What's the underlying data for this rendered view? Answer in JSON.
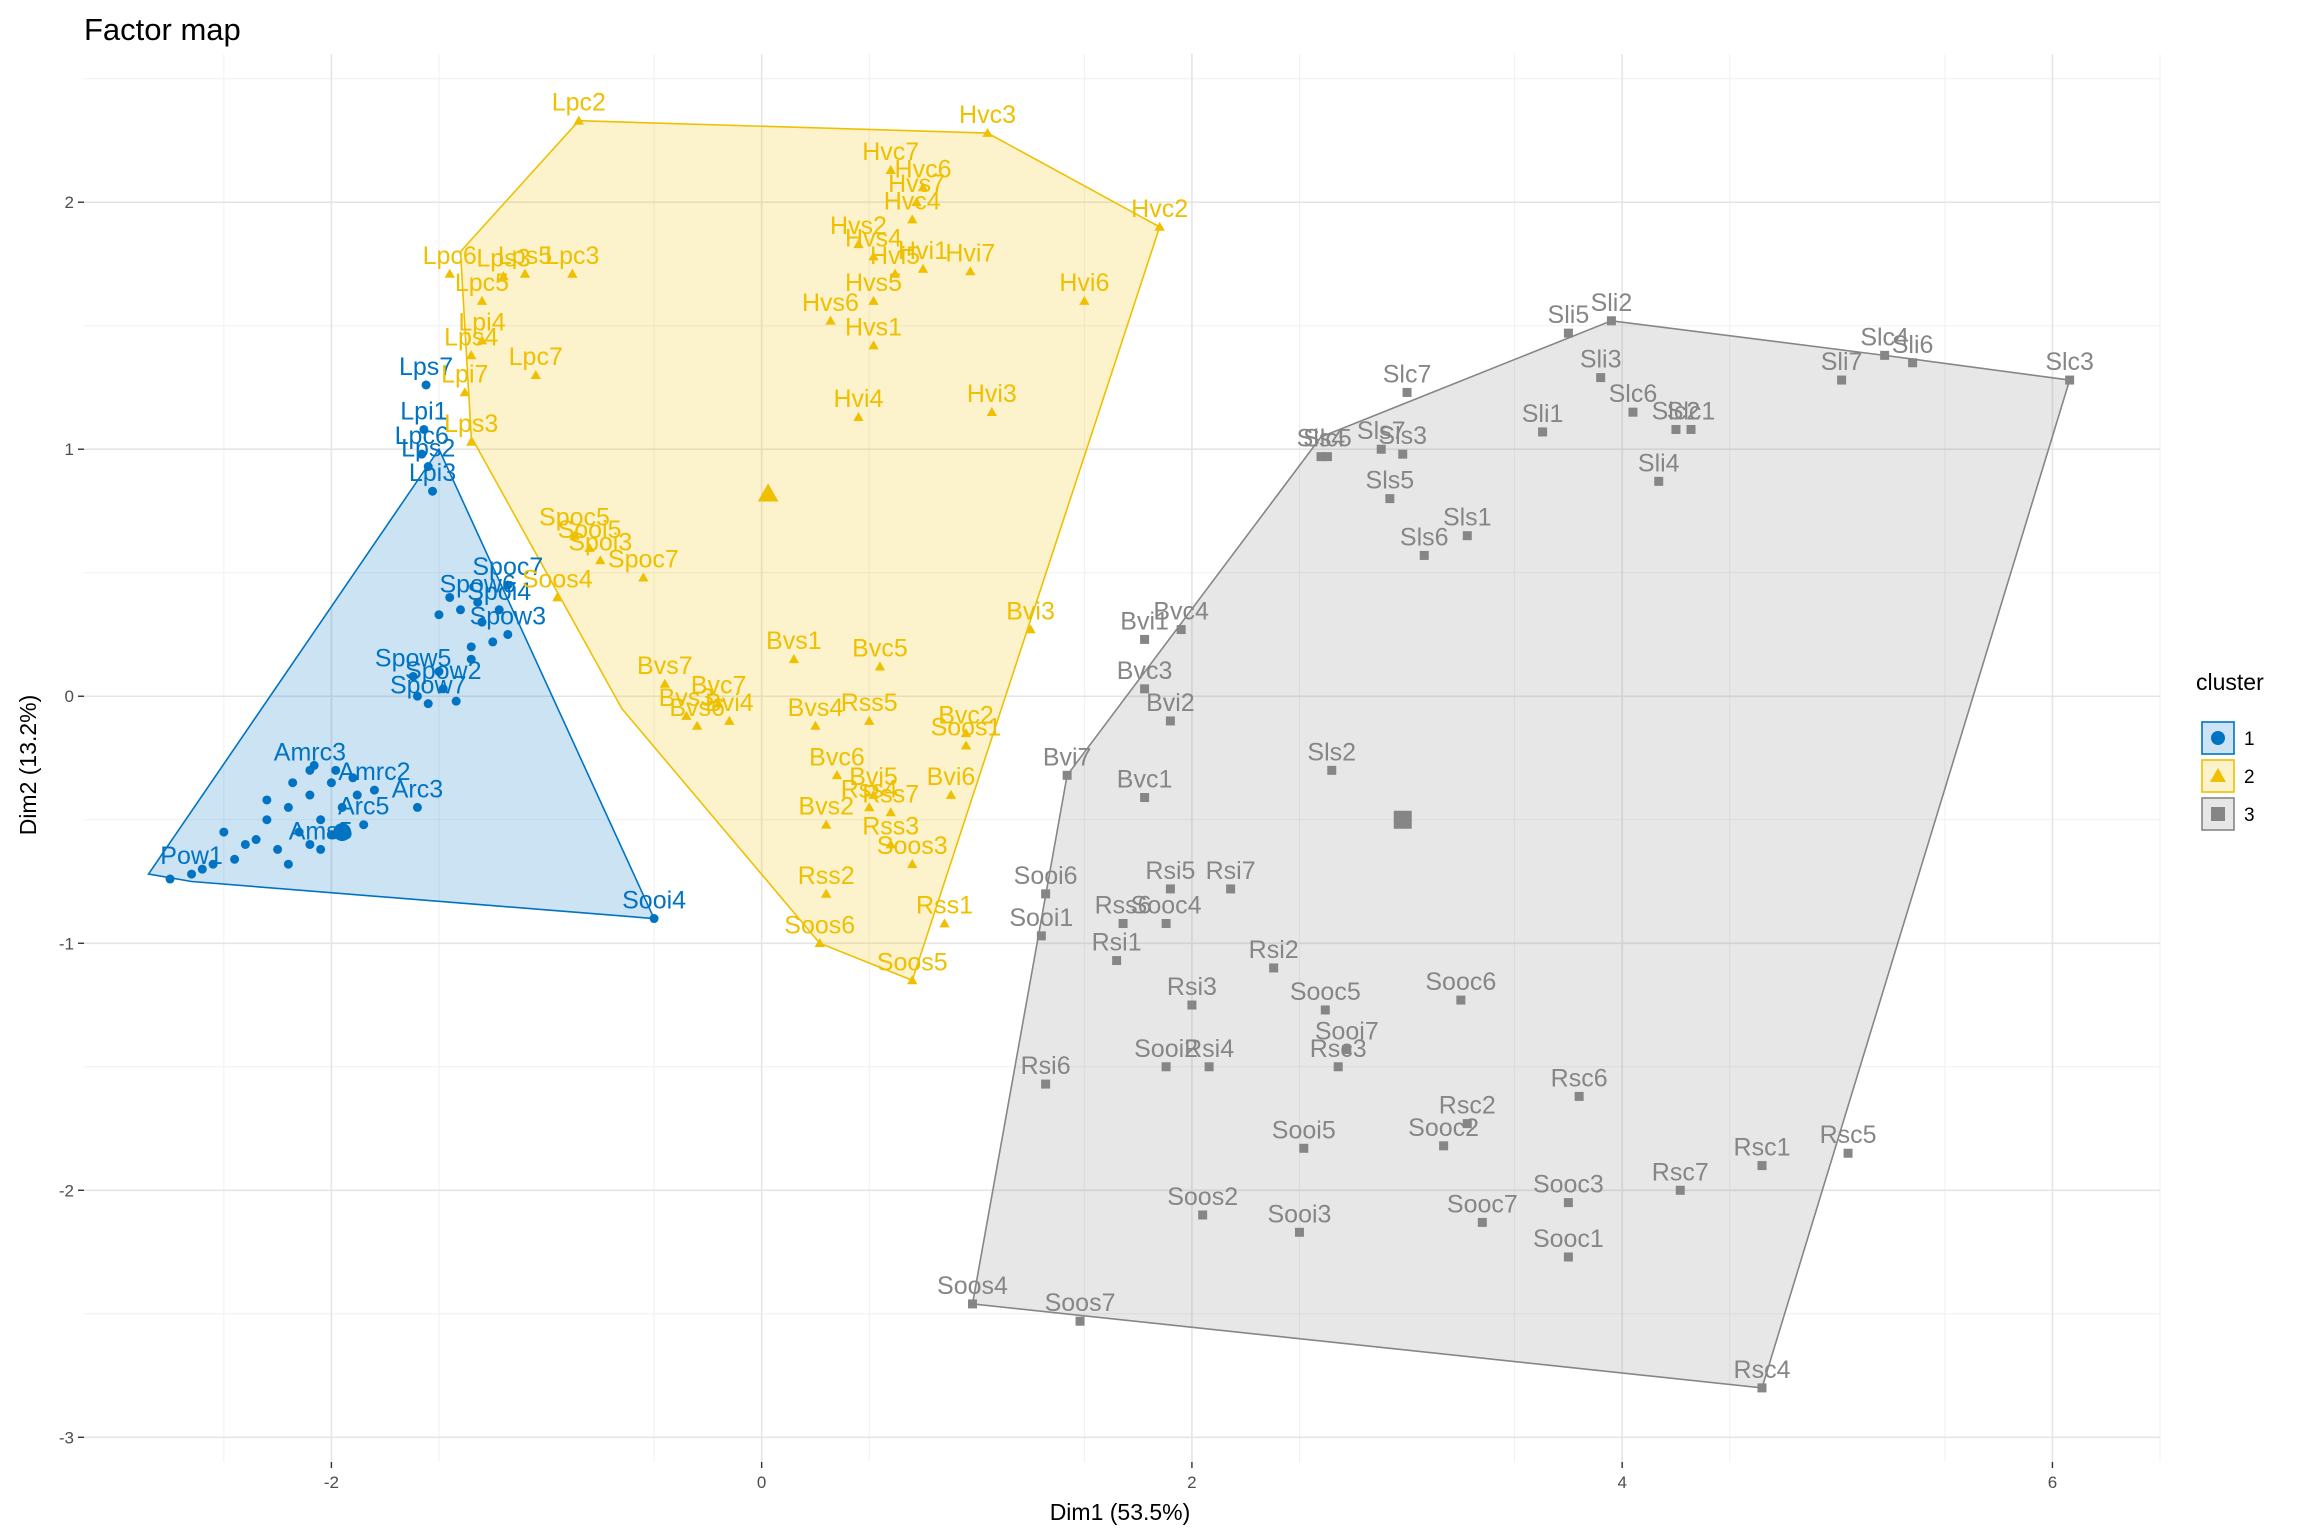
{
  "chart_data": {
    "type": "scatter",
    "title": "Factor map",
    "xlabel": "Dim1 (53.5%)",
    "ylabel": "Dim2 (13.2%)",
    "xlim": [
      -3.15,
      6.5
    ],
    "ylim": [
      -3.1,
      2.6
    ],
    "xticks": [
      -2,
      0,
      2,
      4,
      6
    ],
    "yticks": [
      -3,
      -2,
      -1,
      0,
      1,
      2
    ],
    "grid": true,
    "legend": {
      "title": "cluster",
      "position": "right"
    },
    "clusters": [
      {
        "name": "1",
        "color": "#0073C2",
        "fill": "#0073C2",
        "shape": "circle",
        "centroid": [
          -1.95,
          -0.55
        ],
        "hull": [
          [
            -1.5,
            1.0
          ],
          [
            -0.5,
            -0.9
          ],
          [
            -2.65,
            -0.75
          ],
          [
            -2.85,
            -0.72
          ]
        ],
        "points": [
          {
            "label": "Lps7",
            "x": -1.56,
            "y": 1.26
          },
          {
            "label": "Lpi1",
            "x": -1.57,
            "y": 1.08
          },
          {
            "label": "Lpc6",
            "x": -1.58,
            "y": 0.98
          },
          {
            "label": "Lps2",
            "x": -1.55,
            "y": 0.93
          },
          {
            "label": "Lpi3",
            "x": -1.53,
            "y": 0.83
          },
          {
            "label": "Spoc7",
            "x": -1.18,
            "y": 0.45
          },
          {
            "label": "Spow6",
            "x": -1.32,
            "y": 0.38
          },
          {
            "label": "Spoi4",
            "x": -1.22,
            "y": 0.35
          },
          {
            "label": "Spow3",
            "x": -1.18,
            "y": 0.25
          },
          {
            "label": "Spow5",
            "x": -1.62,
            "y": 0.08
          },
          {
            "label": "Spow2",
            "x": -1.48,
            "y": 0.03
          },
          {
            "label": "Spow7",
            "x": -1.55,
            "y": -0.03
          },
          {
            "label": "Amrc3",
            "x": -2.1,
            "y": -0.3
          },
          {
            "label": "Amrc2",
            "x": -1.8,
            "y": -0.38
          },
          {
            "label": "Arc3",
            "x": -1.6,
            "y": -0.45
          },
          {
            "label": "Arc5",
            "x": -1.85,
            "y": -0.52
          },
          {
            "label": "Ams5",
            "x": -2.05,
            "y": -0.62
          },
          {
            "label": "Pow1",
            "x": -2.65,
            "y": -0.72
          },
          {
            "label": "Sooi4",
            "x": -0.5,
            "y": -0.9
          }
        ]
      },
      {
        "name": "2",
        "color": "#EFC000",
        "fill": "#EFC000",
        "shape": "triangle",
        "centroid": [
          0.03,
          0.82
        ],
        "hull": [
          [
            -0.85,
            2.33
          ],
          [
            1.05,
            2.28
          ],
          [
            1.85,
            1.9
          ],
          [
            0.7,
            -1.15
          ],
          [
            0.27,
            -1.0
          ],
          [
            -0.65,
            -0.05
          ],
          [
            -1.35,
            1.05
          ],
          [
            -1.4,
            1.8
          ]
        ],
        "points": [
          {
            "label": "Lpc2",
            "x": -0.85,
            "y": 2.33
          },
          {
            "label": "Hvc3",
            "x": 1.05,
            "y": 2.28
          },
          {
            "label": "Hvc2",
            "x": 1.85,
            "y": 1.9
          },
          {
            "label": "Hvc7",
            "x": 0.6,
            "y": 2.13
          },
          {
            "label": "Hvc6",
            "x": 0.75,
            "y": 2.06
          },
          {
            "label": "Hvs7",
            "x": 0.72,
            "y": 2.0
          },
          {
            "label": "Hvc4",
            "x": 0.7,
            "y": 1.93
          },
          {
            "label": "Hvs2",
            "x": 0.45,
            "y": 1.83
          },
          {
            "label": "Hvs4",
            "x": 0.52,
            "y": 1.78
          },
          {
            "label": "Hvi1",
            "x": 0.75,
            "y": 1.73
          },
          {
            "label": "Hvi7",
            "x": 0.97,
            "y": 1.72
          },
          {
            "label": "Hvi5",
            "x": 0.62,
            "y": 1.71
          },
          {
            "label": "Hvs5",
            "x": 0.52,
            "y": 1.6
          },
          {
            "label": "Hvi6",
            "x": 1.5,
            "y": 1.6
          },
          {
            "label": "Hvs6",
            "x": 0.32,
            "y": 1.52
          },
          {
            "label": "Hvs1",
            "x": 0.52,
            "y": 1.42
          },
          {
            "label": "Hvi4",
            "x": 0.45,
            "y": 1.13
          },
          {
            "label": "Hvi3",
            "x": 1.07,
            "y": 1.15
          },
          {
            "label": "Lpc3",
            "x": -0.88,
            "y": 1.71
          },
          {
            "label": "Lpc6",
            "x": -1.45,
            "y": 1.71
          },
          {
            "label": "Lps5",
            "x": -1.1,
            "y": 1.71
          },
          {
            "label": "Lps3",
            "x": -1.2,
            "y": 1.7
          },
          {
            "label": "Lpc5",
            "x": -1.3,
            "y": 1.6
          },
          {
            "label": "Lpi4",
            "x": -1.3,
            "y": 1.44
          },
          {
            "label": "Lps4",
            "x": -1.35,
            "y": 1.38
          },
          {
            "label": "Lpc7",
            "x": -1.05,
            "y": 1.3
          },
          {
            "label": "Lpi7",
            "x": -1.38,
            "y": 1.23
          },
          {
            "label": "Lps3",
            "x": -1.35,
            "y": 1.03
          },
          {
            "label": "Spoc5",
            "x": -0.87,
            "y": 0.65
          },
          {
            "label": "Sooi5",
            "x": -0.8,
            "y": 0.6
          },
          {
            "label": "Spoi3",
            "x": -0.75,
            "y": 0.55
          },
          {
            "label": "Spoc7",
            "x": -0.55,
            "y": 0.48
          },
          {
            "label": "Soos4",
            "x": -0.95,
            "y": 0.4
          },
          {
            "label": "Bvi3",
            "x": 1.25,
            "y": 0.27
          },
          {
            "label": "Bvs1",
            "x": 0.15,
            "y": 0.15
          },
          {
            "label": "Bvc5",
            "x": 0.55,
            "y": 0.12
          },
          {
            "label": "Bvs7",
            "x": -0.45,
            "y": 0.05
          },
          {
            "label": "Bvc7",
            "x": -0.2,
            "y": -0.03
          },
          {
            "label": "Bvs3",
            "x": -0.35,
            "y": -0.08
          },
          {
            "label": "Bvi4",
            "x": -0.15,
            "y": -0.1
          },
          {
            "label": "Bvs6",
            "x": -0.3,
            "y": -0.12
          },
          {
            "label": "Rss5",
            "x": 0.5,
            "y": -0.1
          },
          {
            "label": "Bvs4",
            "x": 0.25,
            "y": -0.12
          },
          {
            "label": "Bvc2",
            "x": 0.95,
            "y": -0.15
          },
          {
            "label": "Soos1",
            "x": 0.95,
            "y": -0.2
          },
          {
            "label": "Bvc6",
            "x": 0.35,
            "y": -0.32
          },
          {
            "label": "Bvi5",
            "x": 0.52,
            "y": -0.4
          },
          {
            "label": "Bvi6",
            "x": 0.88,
            "y": -0.4
          },
          {
            "label": "Rss4",
            "x": 0.5,
            "y": -0.45
          },
          {
            "label": "Rss7",
            "x": 0.6,
            "y": -0.47
          },
          {
            "label": "Bvs2",
            "x": 0.3,
            "y": -0.52
          },
          {
            "label": "Rss3",
            "x": 0.6,
            "y": -0.6
          },
          {
            "label": "Soos3",
            "x": 0.7,
            "y": -0.68
          },
          {
            "label": "Rss2",
            "x": 0.3,
            "y": -0.8
          },
          {
            "label": "Rss1",
            "x": 0.85,
            "y": -0.92
          },
          {
            "label": "Soos6",
            "x": 0.27,
            "y": -1.0
          },
          {
            "label": "Soos5",
            "x": 0.7,
            "y": -1.15
          }
        ]
      },
      {
        "name": "3",
        "color": "#868686",
        "fill": "#868686",
        "shape": "square",
        "centroid": [
          2.98,
          -0.5
        ],
        "hull": [
          [
            3.95,
            1.52
          ],
          [
            5.22,
            1.38
          ],
          [
            6.08,
            1.28
          ],
          [
            4.65,
            -2.8
          ],
          [
            0.98,
            -2.46
          ],
          [
            1.42,
            -0.32
          ],
          [
            2.6,
            1.05
          ]
        ],
        "points": [
          {
            "label": "Sli2",
            "x": 3.95,
            "y": 1.52
          },
          {
            "label": "Sli5",
            "x": 3.75,
            "y": 1.47
          },
          {
            "label": "Slc4",
            "x": 5.22,
            "y": 1.38
          },
          {
            "label": "Sli6",
            "x": 5.35,
            "y": 1.35
          },
          {
            "label": "Slc3",
            "x": 6.08,
            "y": 1.28
          },
          {
            "label": "Sli7",
            "x": 5.02,
            "y": 1.28
          },
          {
            "label": "Sli3",
            "x": 3.9,
            "y": 1.29
          },
          {
            "label": "Slc6",
            "x": 4.05,
            "y": 1.15
          },
          {
            "label": "Slc2",
            "x": 4.25,
            "y": 1.08
          },
          {
            "label": "Slc1",
            "x": 4.32,
            "y": 1.08
          },
          {
            "label": "Slc7",
            "x": 3.0,
            "y": 1.23
          },
          {
            "label": "Sli1",
            "x": 3.63,
            "y": 1.07
          },
          {
            "label": "Sls4",
            "x": 2.6,
            "y": 0.97
          },
          {
            "label": "Sls7",
            "x": 2.88,
            "y": 1.0
          },
          {
            "label": "Sls3",
            "x": 2.98,
            "y": 0.98
          },
          {
            "label": "Slc5",
            "x": 2.63,
            "y": 0.97
          },
          {
            "label": "Sli4",
            "x": 4.17,
            "y": 0.87
          },
          {
            "label": "Sls5",
            "x": 2.92,
            "y": 0.8
          },
          {
            "label": "Sls1",
            "x": 3.28,
            "y": 0.65
          },
          {
            "label": "Sls6",
            "x": 3.08,
            "y": 0.57
          },
          {
            "label": "Bvi1",
            "x": 1.78,
            "y": 0.23
          },
          {
            "label": "Bvc4",
            "x": 1.95,
            "y": 0.27
          },
          {
            "label": "Bvc3",
            "x": 1.78,
            "y": 0.03
          },
          {
            "label": "Bvi2",
            "x": 1.9,
            "y": -0.1
          },
          {
            "label": "Bvi7",
            "x": 1.42,
            "y": -0.32
          },
          {
            "label": "Sls2",
            "x": 2.65,
            "y": -0.3
          },
          {
            "label": "Bvc1",
            "x": 1.78,
            "y": -0.41
          },
          {
            "label": "Sooi6",
            "x": 1.32,
            "y": -0.8
          },
          {
            "label": "Rsi5",
            "x": 1.9,
            "y": -0.78
          },
          {
            "label": "Rsi7",
            "x": 2.18,
            "y": -0.78
          },
          {
            "label": "Sooi1",
            "x": 1.3,
            "y": -0.97
          },
          {
            "label": "Rss6",
            "x": 1.68,
            "y": -0.92
          },
          {
            "label": "Sooc4",
            "x": 1.88,
            "y": -0.92
          },
          {
            "label": "Rsi1",
            "x": 1.65,
            "y": -1.07
          },
          {
            "label": "Rsi2",
            "x": 2.38,
            "y": -1.1
          },
          {
            "label": "Rsi3",
            "x": 2.0,
            "y": -1.25
          },
          {
            "label": "Sooc5",
            "x": 2.62,
            "y": -1.27
          },
          {
            "label": "Sooc6",
            "x": 3.25,
            "y": -1.23
          },
          {
            "label": "Sooi7",
            "x": 2.72,
            "y": -1.43
          },
          {
            "label": "Rsc3",
            "x": 2.68,
            "y": -1.5
          },
          {
            "label": "Sooi2",
            "x": 1.88,
            "y": -1.5
          },
          {
            "label": "Rsi4",
            "x": 2.08,
            "y": -1.5
          },
          {
            "label": "Rsi6",
            "x": 1.32,
            "y": -1.57
          },
          {
            "label": "Rsc6",
            "x": 3.8,
            "y": -1.62
          },
          {
            "label": "Rsc2",
            "x": 3.28,
            "y": -1.73
          },
          {
            "label": "Sooc2",
            "x": 3.17,
            "y": -1.82
          },
          {
            "label": "Sooi5",
            "x": 2.52,
            "y": -1.83
          },
          {
            "label": "Rsc5",
            "x": 5.05,
            "y": -1.85
          },
          {
            "label": "Rsc1",
            "x": 4.65,
            "y": -1.9
          },
          {
            "label": "Rsc7",
            "x": 4.27,
            "y": -2.0
          },
          {
            "label": "Sooc3",
            "x": 3.75,
            "y": -2.05
          },
          {
            "label": "Soos2",
            "x": 2.05,
            "y": -2.1
          },
          {
            "label": "Sooc7",
            "x": 3.35,
            "y": -2.13
          },
          {
            "label": "Sooi3",
            "x": 2.5,
            "y": -2.17
          },
          {
            "label": "Sooc1",
            "x": 3.75,
            "y": -2.27
          },
          {
            "label": "Soos4",
            "x": 0.98,
            "y": -2.46
          },
          {
            "label": "Soos7",
            "x": 1.48,
            "y": -2.53
          },
          {
            "label": "Rsc4",
            "x": 4.65,
            "y": -2.8
          }
        ]
      }
    ],
    "cluster1_extra_points": [
      [
        -2.5,
        -0.55
      ],
      [
        -2.4,
        -0.6
      ],
      [
        -2.3,
        -0.5
      ],
      [
        -2.2,
        -0.45
      ],
      [
        -2.1,
        -0.4
      ],
      [
        -2.0,
        -0.35
      ],
      [
        -1.9,
        -0.33
      ],
      [
        -2.35,
        -0.58
      ],
      [
        -2.25,
        -0.62
      ],
      [
        -2.15,
        -0.55
      ],
      [
        -2.05,
        -0.5
      ],
      [
        -1.95,
        -0.45
      ],
      [
        -2.45,
        -0.66
      ],
      [
        -2.55,
        -0.68
      ],
      [
        -2.6,
        -0.7
      ],
      [
        -2.75,
        -0.74
      ],
      [
        -2.3,
        -0.42
      ],
      [
        -2.18,
        -0.35
      ],
      [
        -2.08,
        -0.28
      ],
      [
        -1.98,
        -0.3
      ],
      [
        -1.88,
        -0.4
      ],
      [
        -2.2,
        -0.68
      ],
      [
        -2.1,
        -0.6
      ],
      [
        -2.0,
        -0.56
      ],
      [
        -1.45,
        0.4
      ],
      [
        -1.4,
        0.35
      ],
      [
        -1.3,
        0.3
      ],
      [
        -1.25,
        0.22
      ],
      [
        -1.35,
        0.2
      ],
      [
        -1.5,
        0.1
      ],
      [
        -1.42,
        -0.02
      ],
      [
        -1.6,
        0.0
      ],
      [
        -1.5,
        0.33
      ],
      [
        -1.35,
        0.15
      ]
    ]
  }
}
